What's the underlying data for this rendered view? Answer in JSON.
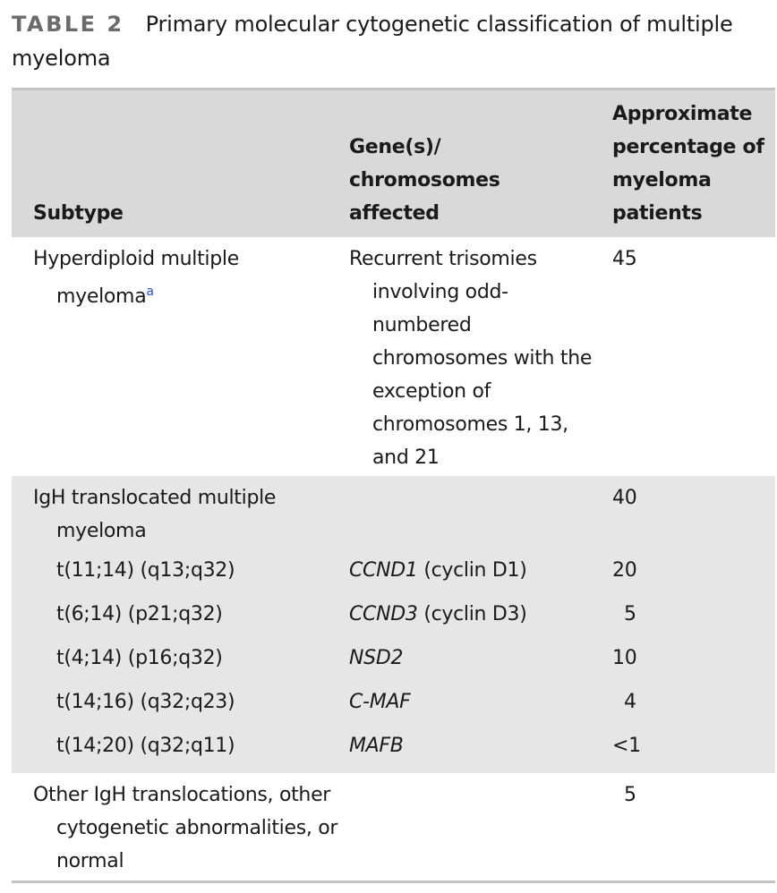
{
  "caption": {
    "label": "TABLE 2",
    "title": "Primary molecular cytogenetic classification of multiple myeloma"
  },
  "table": {
    "headers": {
      "subtype": "Subtype",
      "genes": "Gene(s)/ chromosomes affected",
      "percent": "Approximate percentage of myeloma patients"
    },
    "rows": [
      {
        "subtype": "Hyperdiploid multiple myeloma",
        "footnote": "a",
        "genes": "Recurrent trisomies involving odd-numbered chromosomes with the exception of chromosomes 1, 13, and 21",
        "percent": "45"
      },
      {
        "subtype": "IgH translocated multiple myeloma",
        "genes": "",
        "percent": "40"
      },
      {
        "subtype": "t(11;14) (q13;q32)",
        "gene_symbol": "CCND1",
        "gene_desc": "(cyclin D1)",
        "percent": "20"
      },
      {
        "subtype": "t(6;14) (p21;q32)",
        "gene_symbol": "CCND3",
        "gene_desc": "(cyclin D3)",
        "percent": "5"
      },
      {
        "subtype": "t(4;14) (p16;q32)",
        "gene_symbol": "NSD2",
        "gene_desc": "",
        "percent": "10"
      },
      {
        "subtype": "t(14;16) (q32;q23)",
        "gene_symbol": "C-MAF",
        "gene_desc": "",
        "percent": "4"
      },
      {
        "subtype": "t(14;20) (q32;q11)",
        "gene_symbol": "MAFB",
        "gene_desc": "",
        "percent": "<1"
      },
      {
        "subtype": "Other IgH translocations, other cytogenetic abnormalities, or normal",
        "genes": "",
        "percent": "5"
      }
    ]
  }
}
